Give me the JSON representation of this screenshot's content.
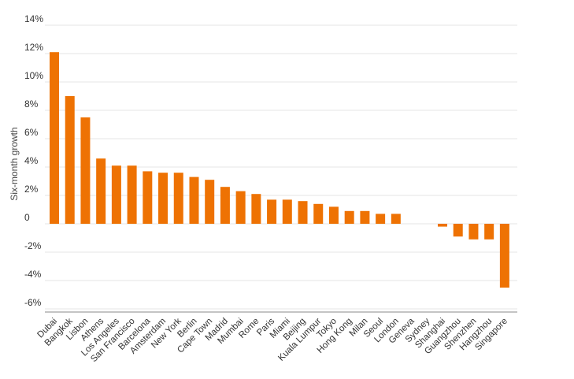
{
  "chart_data": {
    "type": "bar",
    "title": "",
    "xlabel": "",
    "ylabel": "Six-month growth",
    "ylim": [
      -6.2,
      14
    ],
    "y_ticks": [
      14,
      12,
      10,
      8,
      6,
      4,
      2,
      0,
      -2,
      -4,
      -6
    ],
    "y_tick_labels": [
      "14%",
      "12%",
      "10%",
      "8%",
      "6%",
      "4%",
      "2%",
      "0",
      "-2%",
      "-4%",
      "-6%"
    ],
    "grid": true,
    "legend": "none",
    "bar_color": "#ee7203",
    "categories": [
      "Dubai",
      "Bangkok",
      "Lisbon",
      "Athens",
      "Los Angeles",
      "San Francisco",
      "Barcelona",
      "Amsterdam",
      "New York",
      "Berlin",
      "Cape Town",
      "Madrid",
      "Mumbai",
      "Rome",
      "Paris",
      "Miami",
      "Beijing",
      "Kuala Lumpur",
      "Tokyo",
      "Hong Kong",
      "Milan",
      "Seoul",
      "London",
      "Geneva",
      "Sydney",
      "Shanghai",
      "Guangzhou",
      "Shenzhen",
      "Hangzhou",
      "Singapore"
    ],
    "values": [
      12.1,
      9.0,
      7.5,
      4.6,
      4.1,
      4.1,
      3.7,
      3.6,
      3.6,
      3.3,
      3.1,
      2.6,
      2.3,
      2.1,
      1.7,
      1.7,
      1.6,
      1.4,
      1.2,
      0.9,
      0.9,
      0.7,
      0.7,
      0.0,
      0.0,
      -0.2,
      -0.9,
      -1.1,
      -1.1,
      -4.5
    ]
  }
}
